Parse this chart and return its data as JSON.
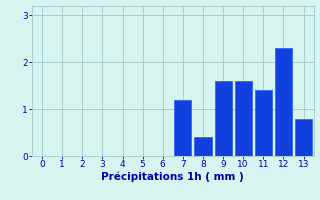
{
  "categories": [
    0,
    1,
    2,
    3,
    4,
    5,
    6,
    7,
    8,
    9,
    10,
    11,
    12,
    13
  ],
  "values": [
    0,
    0,
    0,
    0,
    0,
    0,
    0,
    1.2,
    0.4,
    1.6,
    1.6,
    1.4,
    2.3,
    0.8
  ],
  "bar_color": "#1040dd",
  "bar_edge_color": "#3366ff",
  "background_color": "#d6f5f0",
  "grid_color": "#aacccc",
  "xlabel": "Précipitations 1h ( mm )",
  "xlabel_color": "#0000aa",
  "tick_color": "#0000aa",
  "ylim": [
    0,
    3.2
  ],
  "yticks": [
    0,
    1,
    2,
    3
  ],
  "xlim": [
    -0.5,
    13.5
  ],
  "xticks": [
    0,
    1,
    2,
    3,
    4,
    5,
    6,
    7,
    8,
    9,
    10,
    11,
    12,
    13
  ]
}
